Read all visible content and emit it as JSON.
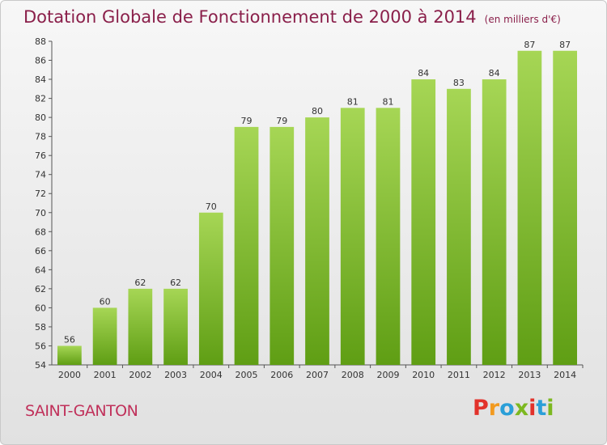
{
  "page": {
    "title": "Dotation Globale de Fonctionnement de 2000 à 2014",
    "subtitle": "(en milliers d'€)",
    "town": "SAINT-GANTON",
    "logo": "Proxiti"
  },
  "colors": {
    "title": "#8a1f4a",
    "town": "#c0305a",
    "bar_top": "#a6d655",
    "bar_bottom": "#5f9e14",
    "logo": [
      "#e2322b",
      "#f29a1f",
      "#2a9fd8",
      "#7cb820",
      "#e2322b",
      "#2a9fd8",
      "#7cb820"
    ]
  },
  "chart_data": {
    "type": "bar",
    "title": "Dotation Globale de Fonctionnement de 2000 à 2014",
    "subtitle": "(en milliers d'€)",
    "categories": [
      "2000",
      "2001",
      "2002",
      "2003",
      "2004",
      "2005",
      "2006",
      "2007",
      "2008",
      "2009",
      "2010",
      "2011",
      "2012",
      "2013",
      "2014"
    ],
    "values": [
      56,
      60,
      62,
      62,
      70,
      79,
      79,
      80,
      81,
      81,
      84,
      83,
      84,
      87,
      87
    ],
    "ylim": [
      54,
      88
    ],
    "yticks": [
      54,
      56,
      58,
      60,
      62,
      64,
      66,
      68,
      70,
      72,
      74,
      76,
      78,
      80,
      82,
      84,
      86,
      88
    ],
    "grid": false,
    "data_labels": true
  }
}
